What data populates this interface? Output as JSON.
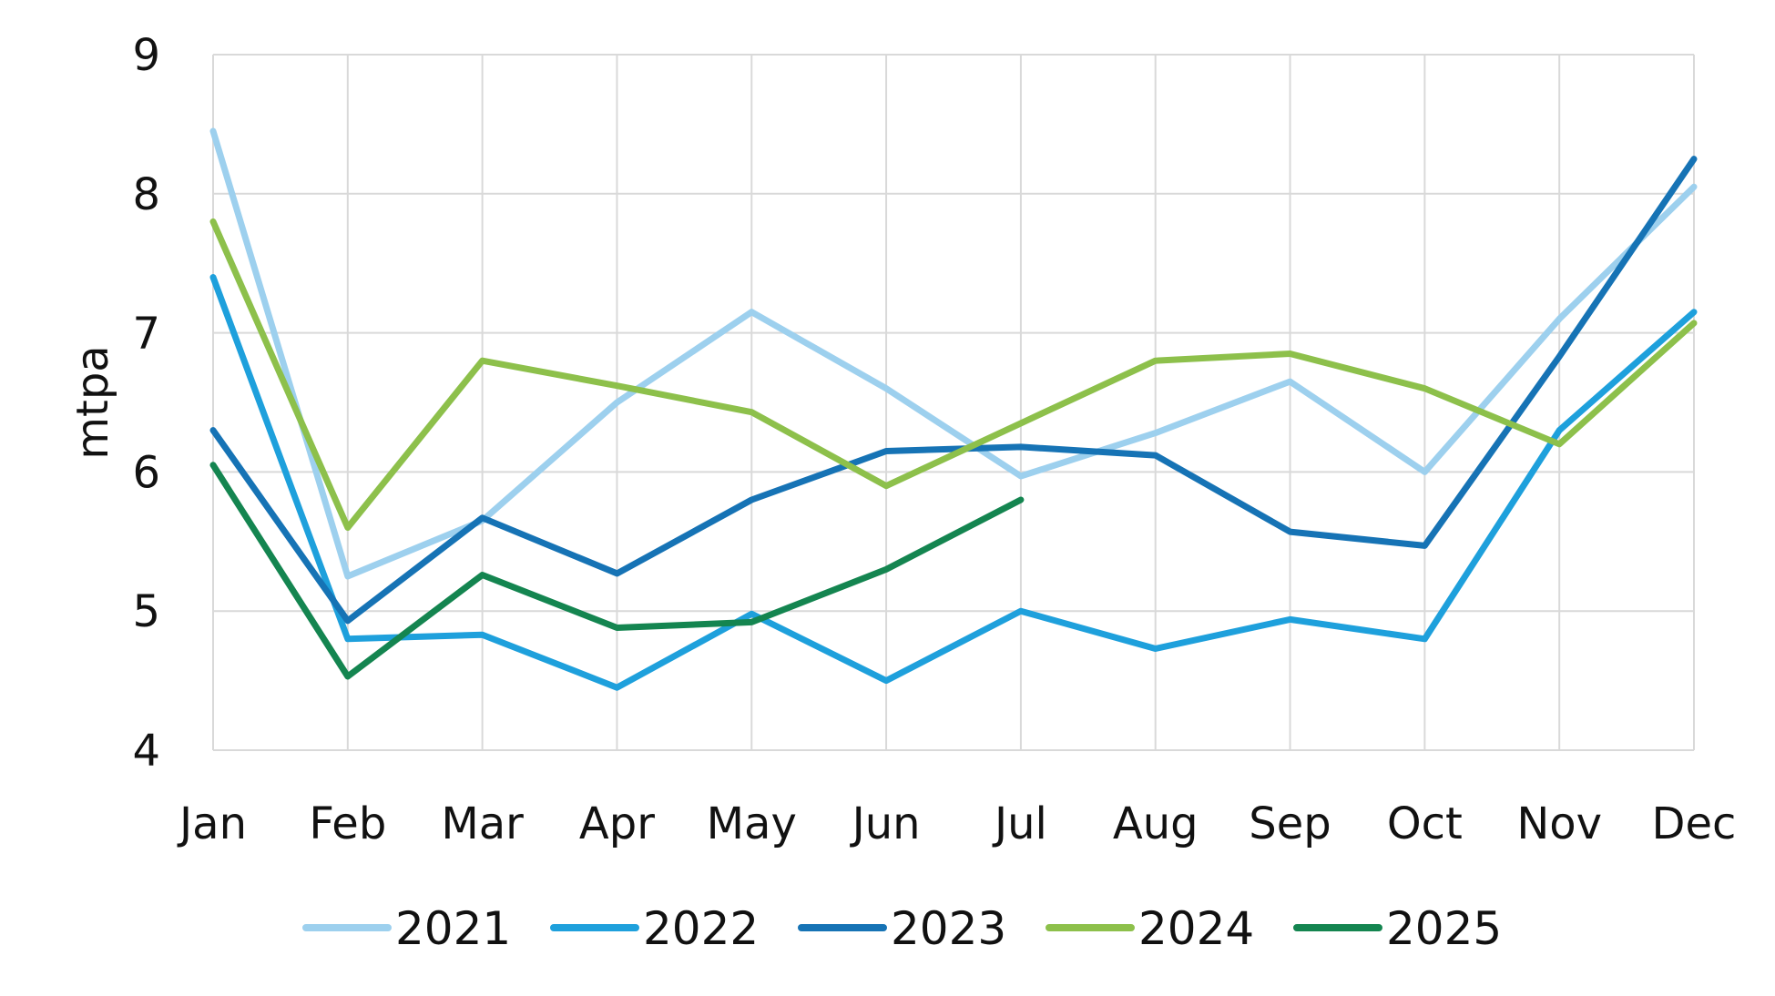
{
  "chart_data": {
    "type": "line",
    "title": "",
    "xlabel": "",
    "ylabel": "mtpa",
    "ylim": [
      4,
      9
    ],
    "yticks": [
      "4",
      "5",
      "6",
      "7",
      "8",
      "9"
    ],
    "categories": [
      "Jan",
      "Feb",
      "Mar",
      "Apr",
      "May",
      "Jun",
      "Jul",
      "Aug",
      "Sep",
      "Oct",
      "Nov",
      "Dec"
    ],
    "grid": true,
    "legend_position": "bottom",
    "series": [
      {
        "name": "2021",
        "color": "#9DD0EE",
        "values": [
          8.45,
          5.25,
          5.65,
          6.5,
          7.15,
          6.6,
          5.97,
          6.28,
          6.65,
          6.0,
          7.1,
          8.05
        ]
      },
      {
        "name": "2022",
        "color": "#1EA0DC",
        "values": [
          7.4,
          4.8,
          4.83,
          4.45,
          4.98,
          4.5,
          5.0,
          4.73,
          4.94,
          4.8,
          6.3,
          7.15
        ]
      },
      {
        "name": "2023",
        "color": "#1673B5",
        "values": [
          6.3,
          4.93,
          5.67,
          5.27,
          5.8,
          6.15,
          6.18,
          6.12,
          5.57,
          5.47,
          6.83,
          8.25
        ]
      },
      {
        "name": "2024",
        "color": "#8DC04B",
        "values": [
          7.8,
          5.6,
          6.8,
          6.62,
          6.43,
          5.9,
          6.35,
          6.8,
          6.85,
          6.6,
          6.2,
          7.07
        ]
      },
      {
        "name": "2025",
        "color": "#148550",
        "values": [
          6.05,
          4.53,
          5.26,
          4.88,
          4.92,
          5.3,
          5.8,
          null,
          null,
          null,
          null,
          null
        ]
      }
    ]
  }
}
